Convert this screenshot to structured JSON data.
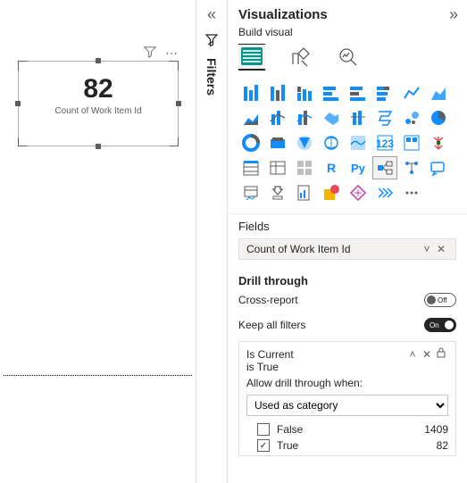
{
  "canvas": {
    "card": {
      "value": "82",
      "label": "Count of Work Item Id"
    }
  },
  "filtersRail": {
    "label": "Filters"
  },
  "viz": {
    "title": "Visualizations",
    "subtitle": "Build visual",
    "modes": [
      "fields",
      "format",
      "analytics"
    ],
    "selectedModeIndex": 0,
    "gallery": {
      "itemCount": 44,
      "selectedIndex": 29,
      "palette": {
        "primary": "#118dff",
        "neutral": "#605e5c",
        "teal": "#0d9488"
      }
    },
    "fields": {
      "header": "Fields",
      "pill": "Count of Work Item Id"
    },
    "drill": {
      "header": "Drill through",
      "crossReport": {
        "label": "Cross-report",
        "state": "Off"
      },
      "keepFilters": {
        "label": "Keep all filters",
        "state": "On"
      },
      "card": {
        "title": "Is Current",
        "subtitle": "is True",
        "prompt": "Allow drill through when:",
        "dropdownValue": "Used as category",
        "values": [
          {
            "label": "False",
            "count": "1409",
            "checked": false
          },
          {
            "label": "True",
            "count": "82",
            "checked": true
          }
        ]
      }
    }
  }
}
